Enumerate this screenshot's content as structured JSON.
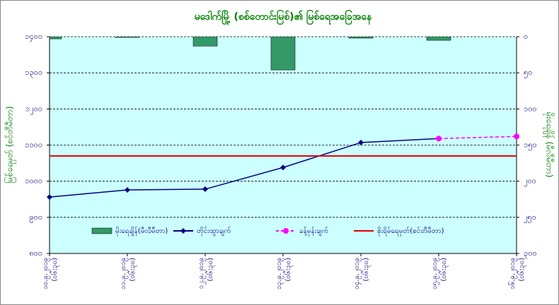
{
  "chart_data": {
    "type": "combo",
    "title": "မဒေါက်မြို့ (စစ်တောင်းမြစ်)၏ မြစ်ရေအခြေအနေ",
    "y_label": "မြစ်ရေမှတ် (စင်တီမီတာ)",
    "y2_label": "မိုးရေချိန် (မီလီမီတာ)",
    "categories": [
      [
        "၁၀.၉.၂၀၁၉",
        "(၀၆:၃၀)"
      ],
      [
        "၁၁.၉.၂၀၁၉",
        "(၀၆:၃၀)"
      ],
      [
        "၁၂.၉.၂၀၁၉",
        "(၀၆:၃၀)"
      ],
      [
        "၁၃.၉.၂၀၁၉",
        "(၀၆:၃၀)"
      ],
      [
        "၁၄.၉.၂၀၁၉",
        "(၀၆:၃၀)"
      ],
      [
        "၁၅.၉.၂၀၁၉",
        "(၀၆:၃၀)"
      ],
      [
        "၁၆.၉.၂၀၁၉",
        "(၀၆:၃၀)"
      ]
    ],
    "ylim": [
      800,
      1400
    ],
    "yticks": [
      {
        "value": 800,
        "label": "၈၀၀"
      },
      {
        "value": 900,
        "label": "၉၀၀"
      },
      {
        "value": 1000,
        "label": "၁၀၀၀"
      },
      {
        "value": 1100,
        "label": "၁၁၀၀"
      },
      {
        "value": 1200,
        "label": "၁၂၀၀"
      },
      {
        "value": 1300,
        "label": "၁၃၀၀"
      },
      {
        "value": 1400,
        "label": "၁၄၀၀"
      }
    ],
    "y2lim": [
      300,
      0
    ],
    "y2ticks": [
      {
        "value": 300,
        "label": "၃၀၀"
      },
      {
        "value": 250,
        "label": "၂၅၀"
      },
      {
        "value": 200,
        "label": "၂၀၀"
      },
      {
        "value": 150,
        "label": "၁၅၀"
      },
      {
        "value": 100,
        "label": "၁၀၀"
      },
      {
        "value": 50,
        "label": "၅၀"
      },
      {
        "value": 0,
        "label": "၀"
      }
    ],
    "grid": true,
    "series": [
      {
        "name": "မိုးရေချိန်(မီလီမီတာ)",
        "kind": "bar",
        "axis": "y2",
        "color": "#339966",
        "values": [
          3,
          1,
          13,
          46,
          2,
          5,
          0
        ]
      },
      {
        "name": "တိုင်းထွာချက်",
        "kind": "line",
        "marker": "diamond",
        "color": "#000080",
        "values": [
          956,
          976,
          978,
          1038,
          1107,
          1118,
          null
        ]
      },
      {
        "name": "ခန့်မှန်းချက်",
        "kind": "line",
        "dashed": true,
        "marker": "circle",
        "color": "#ff00ff",
        "values": [
          null,
          null,
          null,
          null,
          null,
          1118,
          1124
        ]
      },
      {
        "name": "စိုးရိမ်ရေမှတ်(စင်တီမီတာ)",
        "kind": "line",
        "color": "#dd0000",
        "values": [
          1070,
          1070,
          1070,
          1070,
          1070,
          1070,
          1070
        ]
      }
    ]
  }
}
